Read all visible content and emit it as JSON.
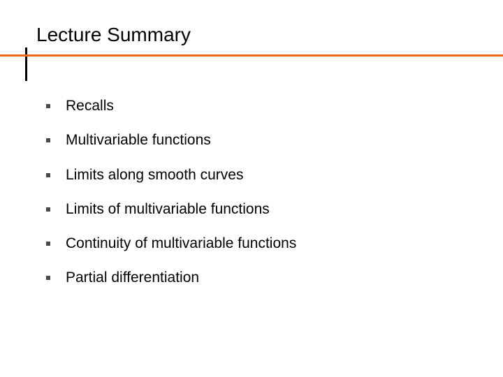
{
  "slide": {
    "title": "Lecture Summary",
    "title_fontsize": 28,
    "title_color": "#000000",
    "accent_line_color": "#ee6b1a",
    "vertical_line_color": "#000000",
    "background_color": "#ffffff",
    "bullet_fontsize": 21,
    "bullet_color": "#000000",
    "bullet_dot_color": "#4a4a4a",
    "bullets": [
      "Recalls",
      "Multivariable functions",
      "Limits along smooth curves",
      "Limits of multivariable functions",
      "Continuity of multivariable functions",
      "Partial differentiation"
    ]
  }
}
